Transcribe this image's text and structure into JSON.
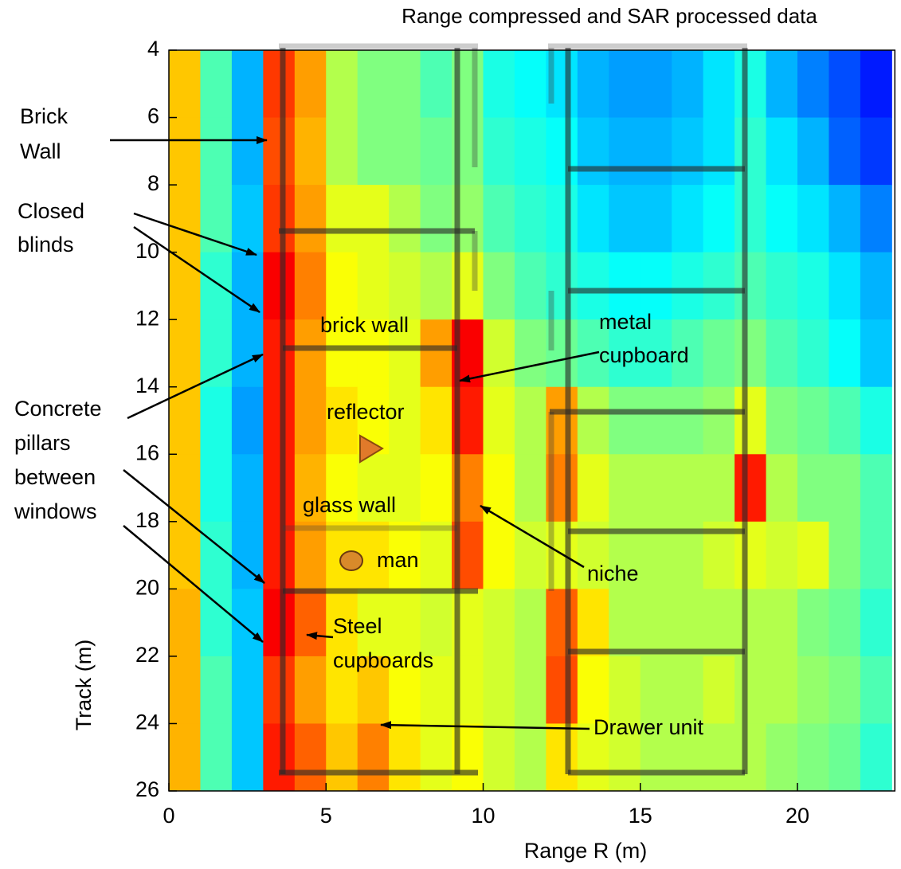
{
  "chart_data": {
    "type": "heatmap",
    "title": "Range compressed and SAR processed data",
    "xlabel": "Range  R (m)",
    "ylabel": "Track (m)",
    "xlim": [
      0,
      23.1
    ],
    "ylim": [
      4,
      26
    ],
    "y_reversed": true,
    "xticks": [
      0,
      5,
      10,
      15,
      20
    ],
    "yticks": [
      4,
      6,
      8,
      10,
      12,
      14,
      16,
      18,
      20,
      22,
      24,
      26
    ],
    "colormap": "jet",
    "xbins": [
      0,
      1,
      2,
      3,
      4,
      5,
      6,
      7,
      8,
      9,
      10,
      11,
      12,
      13,
      14,
      15,
      16,
      17,
      18,
      19,
      20,
      21,
      22,
      23
    ],
    "ybins": [
      4,
      6,
      8,
      10,
      12,
      14,
      16,
      18,
      20,
      22,
      24,
      26
    ],
    "values": [
      [
        0.68,
        0.45,
        0.3,
        0.82,
        0.72,
        0.55,
        0.5,
        0.5,
        0.45,
        0.5,
        0.4,
        0.38,
        0.35,
        0.3,
        0.28,
        0.28,
        0.3,
        0.35,
        0.4,
        0.3,
        0.25,
        0.2,
        0.15
      ],
      [
        0.68,
        0.45,
        0.3,
        0.8,
        0.7,
        0.55,
        0.5,
        0.5,
        0.48,
        0.5,
        0.42,
        0.4,
        0.38,
        0.32,
        0.3,
        0.3,
        0.32,
        0.35,
        0.42,
        0.35,
        0.3,
        0.22,
        0.18
      ],
      [
        0.68,
        0.45,
        0.32,
        0.82,
        0.72,
        0.6,
        0.6,
        0.55,
        0.5,
        0.52,
        0.45,
        0.42,
        0.4,
        0.35,
        0.32,
        0.32,
        0.35,
        0.38,
        0.42,
        0.38,
        0.35,
        0.3,
        0.25
      ],
      [
        0.68,
        0.42,
        0.3,
        0.88,
        0.75,
        0.62,
        0.6,
        0.58,
        0.55,
        0.6,
        0.5,
        0.45,
        0.42,
        0.4,
        0.38,
        0.38,
        0.4,
        0.42,
        0.45,
        0.42,
        0.4,
        0.35,
        0.3
      ],
      [
        0.68,
        0.42,
        0.3,
        0.85,
        0.72,
        0.62,
        0.62,
        0.6,
        0.72,
        0.88,
        0.58,
        0.5,
        0.48,
        0.45,
        0.42,
        0.42,
        0.45,
        0.48,
        0.5,
        0.45,
        0.42,
        0.38,
        0.32
      ],
      [
        0.68,
        0.4,
        0.28,
        0.85,
        0.72,
        0.65,
        0.62,
        0.6,
        0.65,
        0.85,
        0.6,
        0.55,
        0.72,
        0.55,
        0.5,
        0.5,
        0.5,
        0.52,
        0.6,
        0.5,
        0.48,
        0.45,
        0.4
      ],
      [
        0.68,
        0.4,
        0.3,
        0.85,
        0.7,
        0.62,
        0.6,
        0.6,
        0.62,
        0.75,
        0.62,
        0.55,
        0.75,
        0.6,
        0.55,
        0.55,
        0.55,
        0.55,
        0.85,
        0.55,
        0.5,
        0.5,
        0.45
      ],
      [
        0.68,
        0.42,
        0.3,
        0.85,
        0.72,
        0.65,
        0.65,
        0.62,
        0.6,
        0.8,
        0.62,
        0.58,
        0.6,
        0.58,
        0.55,
        0.55,
        0.55,
        0.58,
        0.6,
        0.58,
        0.6,
        0.5,
        0.45
      ],
      [
        0.7,
        0.42,
        0.32,
        0.88,
        0.78,
        0.65,
        0.6,
        0.6,
        0.58,
        0.6,
        0.58,
        0.55,
        0.78,
        0.65,
        0.55,
        0.55,
        0.55,
        0.55,
        0.55,
        0.55,
        0.5,
        0.48,
        0.42
      ],
      [
        0.7,
        0.45,
        0.32,
        0.82,
        0.72,
        0.65,
        0.68,
        0.62,
        0.6,
        0.6,
        0.58,
        0.55,
        0.8,
        0.62,
        0.58,
        0.55,
        0.55,
        0.58,
        0.55,
        0.55,
        0.52,
        0.5,
        0.45
      ],
      [
        0.7,
        0.45,
        0.32,
        0.85,
        0.78,
        0.68,
        0.75,
        0.65,
        0.6,
        0.62,
        0.58,
        0.55,
        0.65,
        0.6,
        0.58,
        0.55,
        0.55,
        0.55,
        0.55,
        0.52,
        0.5,
        0.48,
        0.42
      ]
    ],
    "annotations": [
      {
        "lines": [
          "Brick",
          "Wall"
        ]
      },
      {
        "lines": [
          "Closed",
          "blinds"
        ]
      },
      {
        "lines": [
          "Concrete",
          "pillars",
          "between",
          "windows"
        ]
      },
      {
        "lines": [
          "brick wall"
        ]
      },
      {
        "lines": [
          "metal",
          "cupboard"
        ]
      },
      {
        "lines": [
          "reflector"
        ]
      },
      {
        "lines": [
          "glass wall"
        ]
      },
      {
        "lines": [
          "man"
        ]
      },
      {
        "lines": [
          "niche"
        ]
      },
      {
        "lines": [
          "Steel",
          "cupboards"
        ]
      },
      {
        "lines": [
          "Drawer unit"
        ]
      }
    ]
  }
}
